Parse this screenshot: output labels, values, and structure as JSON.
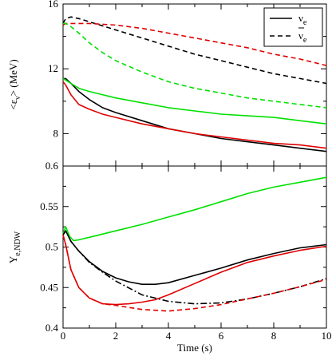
{
  "chart_data": [
    {
      "type": "line",
      "panel": "top",
      "xlabel": "",
      "ylabel": "<ε",
      "ylabel_sub": "ν",
      "ylabel_suffix": "> (MeV)",
      "xlim": [
        0,
        10
      ],
      "ylim": [
        6,
        16
      ],
      "yticks": [
        8,
        12,
        16
      ],
      "ytick_labels": [
        "8",
        "12",
        "16"
      ],
      "legend": {
        "placement": "top-right",
        "entries": [
          {
            "label": "ν",
            "sub": "e",
            "overbar": false,
            "style": "solid"
          },
          {
            "label": "ν",
            "sub": "e",
            "overbar": true,
            "style": "dashed"
          }
        ]
      },
      "series": [
        {
          "color": "#000000",
          "style": "solid",
          "x": [
            0,
            0.1,
            0.3,
            0.6,
            1,
            1.5,
            2,
            3,
            4,
            5,
            6,
            7,
            8,
            9,
            10
          ],
          "y": [
            11.4,
            11.4,
            11.1,
            10.6,
            10.1,
            9.6,
            9.3,
            8.8,
            8.3,
            8.0,
            7.7,
            7.5,
            7.3,
            7.1,
            6.9
          ]
        },
        {
          "color": "#000000",
          "style": "dashed",
          "x": [
            0,
            0.1,
            0.3,
            0.6,
            1,
            2,
            3,
            4,
            5,
            6,
            7,
            8,
            9,
            10
          ],
          "y": [
            14.8,
            15.1,
            15.2,
            15.1,
            14.9,
            14.4,
            13.9,
            13.4,
            12.9,
            12.5,
            12.1,
            11.7,
            11.4,
            11.1
          ]
        },
        {
          "color": "#e00000",
          "style": "solid",
          "x": [
            0,
            0.1,
            0.3,
            0.6,
            1,
            1.5,
            2,
            3,
            4,
            5,
            6,
            7,
            8,
            9,
            10
          ],
          "y": [
            11.2,
            11.0,
            10.4,
            9.8,
            9.5,
            9.2,
            9.0,
            8.6,
            8.3,
            8.0,
            7.8,
            7.6,
            7.4,
            7.3,
            7.1
          ]
        },
        {
          "color": "#e00000",
          "style": "dashed",
          "x": [
            0,
            0.1,
            0.3,
            0.6,
            1,
            2,
            3,
            4,
            5,
            6,
            7,
            8,
            9,
            10
          ],
          "y": [
            14.7,
            14.8,
            14.8,
            14.8,
            14.8,
            14.7,
            14.5,
            14.2,
            13.9,
            13.6,
            13.3,
            12.9,
            12.6,
            12.2
          ]
        },
        {
          "color": "#00e000",
          "style": "solid",
          "x": [
            0,
            0.1,
            0.3,
            0.6,
            1,
            2,
            3,
            4,
            5,
            6,
            7,
            8,
            9,
            10
          ],
          "y": [
            11.4,
            11.3,
            11.1,
            10.8,
            10.6,
            10.2,
            9.9,
            9.6,
            9.4,
            9.2,
            9.1,
            9.0,
            8.8,
            8.6
          ]
        },
        {
          "color": "#00e000",
          "style": "dashed",
          "x": [
            0,
            0.1,
            0.3,
            0.6,
            1,
            1.5,
            2,
            3,
            4,
            5,
            6,
            7,
            8,
            9,
            10
          ],
          "y": [
            14.8,
            14.8,
            14.6,
            14.2,
            13.6,
            13.0,
            12.5,
            11.8,
            11.2,
            10.8,
            10.5,
            10.2,
            10.0,
            9.8,
            9.6
          ]
        }
      ]
    },
    {
      "type": "line",
      "panel": "bottom",
      "xlabel": "Time (s)",
      "ylabel": "Y",
      "ylabel_sub": "e,NDW",
      "xlim": [
        0,
        10
      ],
      "ylim": [
        0.4,
        0.6
      ],
      "xticks": [
        0,
        2,
        4,
        6,
        8,
        10
      ],
      "xtick_labels": [
        "0",
        "2",
        "4",
        "6",
        "8",
        "10"
      ],
      "yticks": [
        0.4,
        0.45,
        0.5,
        0.55,
        0.6
      ],
      "ytick_labels": [
        "0.4",
        "0.45",
        "0.5",
        "0.55",
        "0.6"
      ],
      "series": [
        {
          "color": "#00e000",
          "style": "solid",
          "x": [
            0,
            0.1,
            0.25,
            0.4,
            0.6,
            1,
            2,
            3,
            4,
            5,
            6,
            7,
            8,
            9,
            10
          ],
          "y": [
            0.516,
            0.525,
            0.513,
            0.508,
            0.509,
            0.512,
            0.52,
            0.528,
            0.537,
            0.546,
            0.556,
            0.566,
            0.574,
            0.58,
            0.586
          ]
        },
        {
          "color": "#000000",
          "style": "solid",
          "x": [
            0,
            0.1,
            0.3,
            0.6,
            1,
            1.5,
            2,
            2.5,
            3,
            3.5,
            4,
            5,
            6,
            7,
            8,
            9,
            10
          ],
          "y": [
            0.515,
            0.52,
            0.507,
            0.495,
            0.482,
            0.47,
            0.462,
            0.457,
            0.454,
            0.454,
            0.456,
            0.465,
            0.474,
            0.484,
            0.492,
            0.499,
            0.503
          ]
        },
        {
          "color": "#000000",
          "style": "dashdot",
          "x": [
            0,
            0.1,
            0.3,
            0.6,
            1,
            1.5,
            2,
            3,
            4,
            5,
            6,
            7,
            8,
            9,
            10
          ],
          "y": [
            0.515,
            0.52,
            0.507,
            0.495,
            0.481,
            0.469,
            0.458,
            0.441,
            0.433,
            0.43,
            0.431,
            0.436,
            0.443,
            0.451,
            0.461
          ]
        },
        {
          "color": "#e00000",
          "style": "solid",
          "x": [
            0,
            0.1,
            0.3,
            0.6,
            1,
            1.5,
            2,
            2.5,
            3,
            3.5,
            4,
            5,
            6,
            7,
            8,
            9,
            10
          ],
          "y": [
            0.515,
            0.503,
            0.472,
            0.45,
            0.437,
            0.43,
            0.429,
            0.43,
            0.432,
            0.435,
            0.441,
            0.455,
            0.469,
            0.481,
            0.489,
            0.496,
            0.501
          ]
        },
        {
          "color": "#e00000",
          "style": "dashed",
          "x": [
            0,
            0.1,
            0.3,
            0.6,
            1,
            1.5,
            2,
            3,
            4,
            5,
            6,
            7,
            8,
            9,
            10
          ],
          "y": [
            0.515,
            0.503,
            0.472,
            0.45,
            0.437,
            0.43,
            0.428,
            0.423,
            0.421,
            0.424,
            0.429,
            0.436,
            0.443,
            0.451,
            0.46
          ]
        }
      ]
    }
  ]
}
